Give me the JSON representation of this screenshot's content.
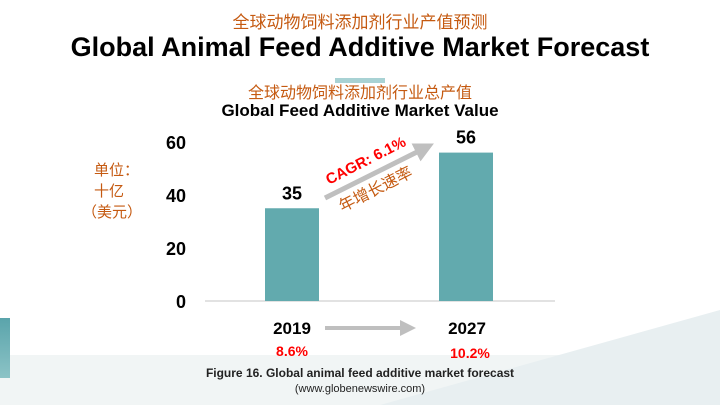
{
  "header": {
    "title_cn": "全球动物饲料添加剂行业产值预测",
    "title_en": "Global Animal Feed Additive Market Forecast"
  },
  "unit_label": {
    "line1": "单位：",
    "line2": "十亿",
    "line3": "（美元）"
  },
  "cagr": {
    "label": "CAGR: 6.1%",
    "label_cn": "年增长速率"
  },
  "growth_rates": [
    {
      "year": "2019",
      "rate": "8.6%"
    },
    {
      "year": "2027",
      "rate": "10.2%"
    }
  ],
  "caption": {
    "line1": "Figure 16. Global animal feed additive market forecast",
    "line2": "(www.globenewswire.com)"
  },
  "colors": {
    "bar": "#62aaae",
    "accent_cn": "#c55a11",
    "red": "#ff0000",
    "arrow": "#bfbfbf"
  },
  "chart_data": {
    "type": "bar",
    "title_cn": "全球动物饲料添加剂行业总产值",
    "title": "Global Feed Additive Market Value",
    "categories": [
      "2019",
      "2027"
    ],
    "values": [
      35,
      56
    ],
    "data_labels": [
      "35",
      "56"
    ],
    "ylim": [
      0,
      60
    ],
    "yticks": [
      "0",
      "20",
      "40",
      "60"
    ],
    "ylabel": "单位：十亿（美元）",
    "grid": false
  }
}
